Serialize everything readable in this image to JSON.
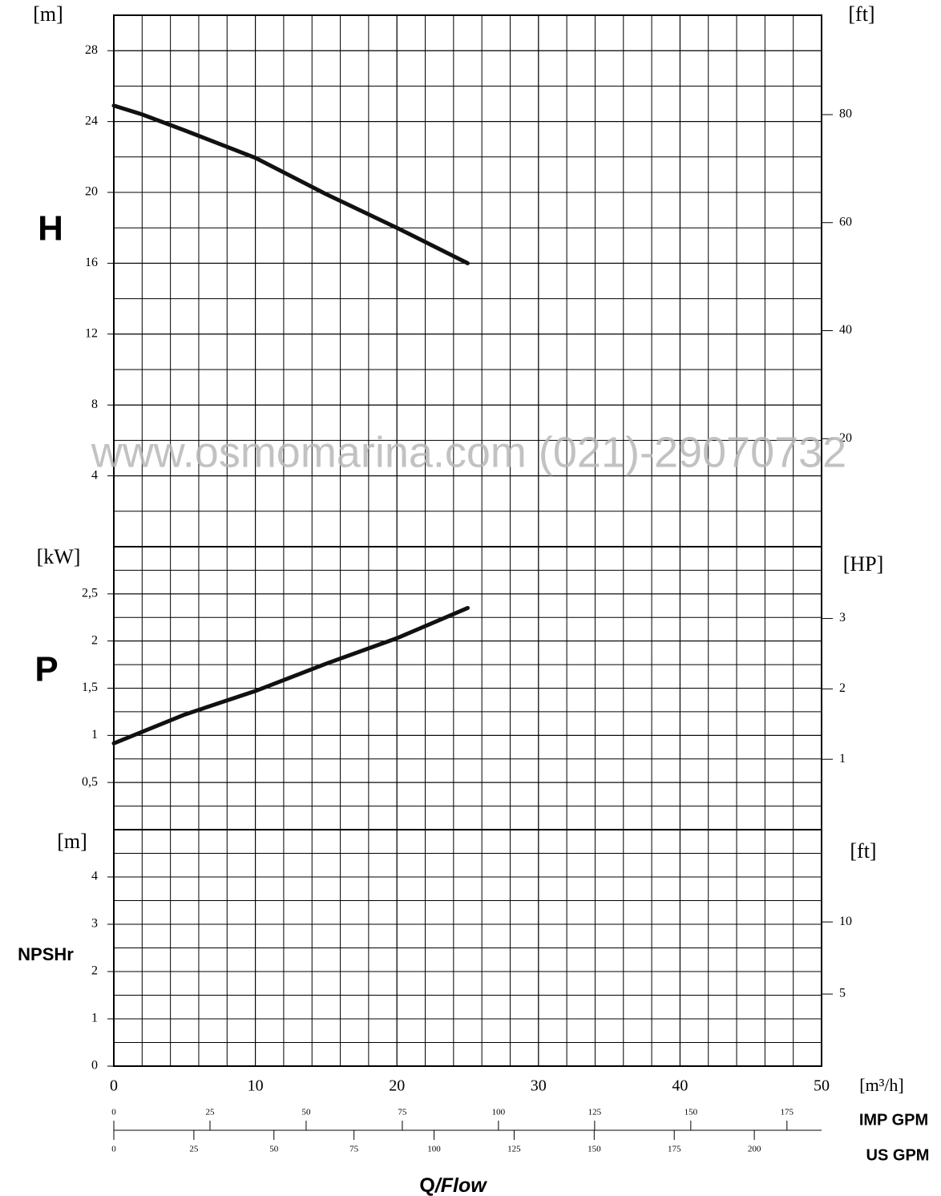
{
  "chart_data": [
    {
      "type": "line",
      "panel_label": "H",
      "ylabel": "[m]",
      "y2label": "[ft]",
      "ylim": [
        0,
        30
      ],
      "yticks": [
        4,
        8,
        12,
        16,
        20,
        24,
        28
      ],
      "y2lim": [
        0,
        98.4
      ],
      "y2ticks": [
        20,
        40,
        60,
        80
      ],
      "x": [
        0,
        2,
        5,
        10,
        15,
        20,
        25
      ],
      "series": [
        {
          "name": "H",
          "color": "#111111",
          "values": [
            24.9,
            24.4,
            23.5,
            21.95,
            19.9,
            18.0,
            16.0
          ]
        }
      ]
    },
    {
      "type": "line",
      "panel_label": "P",
      "ylabel": "[kW]",
      "y2label": "[HP]",
      "ylim": [
        0,
        3
      ],
      "yticks": [
        {
          "value": 0.5,
          "label": "0,5"
        },
        1,
        {
          "value": 1.5,
          "label": "1,5"
        },
        2,
        {
          "value": 2.5,
          "label": "2,5"
        }
      ],
      "y2lim": [
        0,
        4.02
      ],
      "y2ticks": [
        1,
        2,
        3
      ],
      "x": [
        0,
        5,
        10,
        15,
        20,
        25
      ],
      "series": [
        {
          "name": "P",
          "color": "#111111",
          "values": [
            0.915,
            1.22,
            1.47,
            1.76,
            2.03,
            2.35
          ]
        }
      ]
    },
    {
      "type": "line",
      "panel_label": "NPSHr",
      "ylabel": "[m]",
      "y2label": "[ft]",
      "ylim": [
        0,
        5
      ],
      "yticks": [
        0,
        1,
        2,
        3,
        4
      ],
      "y2lim": [
        0,
        16.4
      ],
      "y2ticks": [
        5,
        10
      ],
      "x": [],
      "series": []
    }
  ],
  "x_axis": {
    "label": "[m³/h]",
    "xlim": [
      0,
      50
    ],
    "xticks": [
      0,
      10,
      20,
      30,
      40,
      50
    ]
  },
  "gpm_axes": [
    {
      "name": "IMP GPM",
      "xlim": [
        0,
        184
      ],
      "xticks": [
        0,
        25,
        50,
        75,
        100,
        125,
        150,
        175
      ]
    },
    {
      "name": "US GPM",
      "xlim": [
        0,
        221
      ],
      "xticks": [
        0,
        25,
        50,
        75,
        100,
        125,
        150,
        175,
        200
      ]
    }
  ],
  "flow_label": {
    "q": "Q",
    "flow": "/Flow"
  },
  "watermark": "www.osmomarina.com (021)-29070732"
}
